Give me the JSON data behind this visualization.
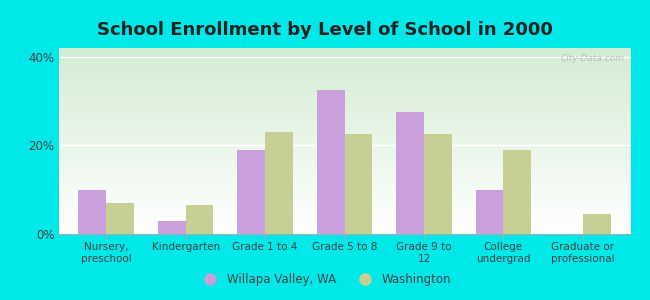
{
  "title": "School Enrollment by Level of School in 2000",
  "categories": [
    "Nursery,\npreschool",
    "Kindergarten",
    "Grade 1 to 4",
    "Grade 5 to 8",
    "Grade 9 to\n12",
    "College\nundergrad",
    "Graduate or\nprofessional"
  ],
  "willapa_values": [
    10.0,
    3.0,
    19.0,
    32.5,
    27.5,
    10.0,
    0.0
  ],
  "washington_values": [
    7.0,
    6.5,
    23.0,
    22.5,
    22.5,
    19.0,
    4.5
  ],
  "willapa_color": "#c9a0dc",
  "washington_color": "#c8cf96",
  "background_color": "#00e8e8",
  "ylim": [
    0,
    42
  ],
  "yticks": [
    0,
    20,
    40
  ],
  "ytick_labels": [
    "0%",
    "20%",
    "40%"
  ],
  "legend_willapa": "Willapa Valley, WA",
  "legend_washington": "Washington",
  "watermark": "City-Data.com",
  "title_fontsize": 13,
  "label_fontsize": 7.5,
  "tick_fontsize": 8.5
}
